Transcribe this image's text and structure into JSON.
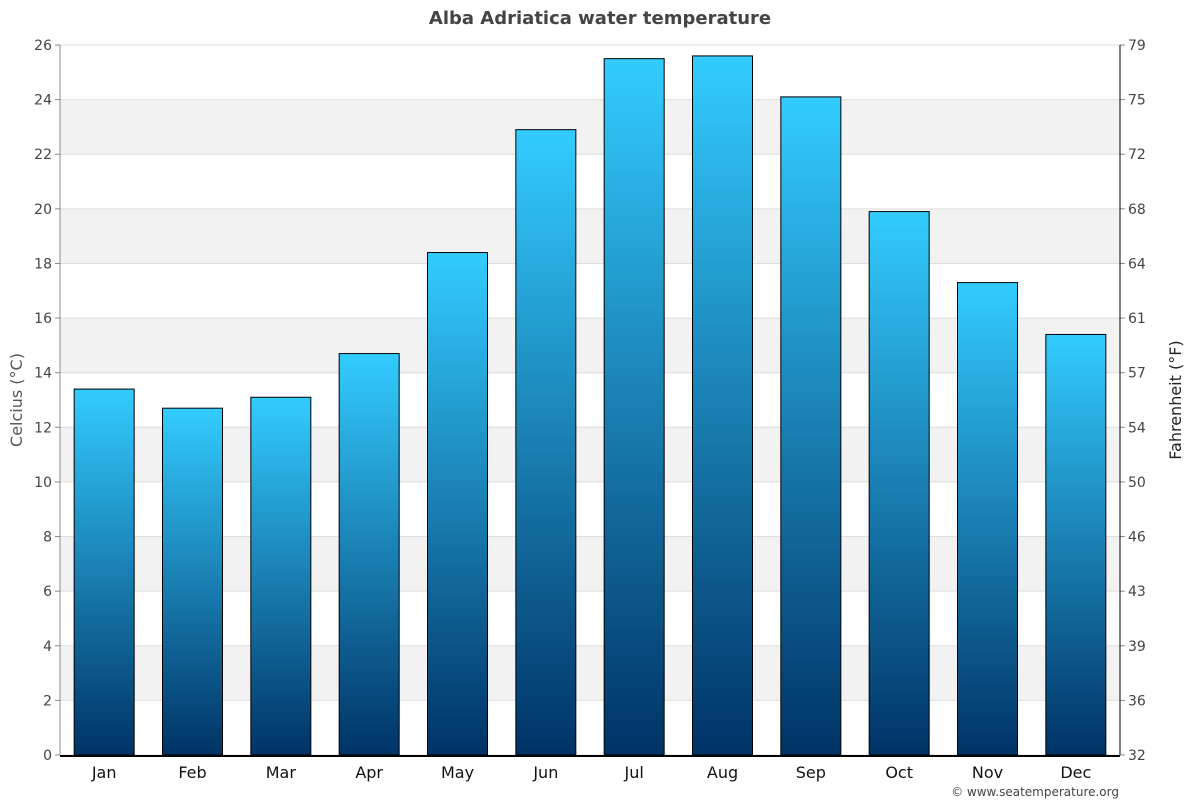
{
  "chart_data": {
    "type": "bar",
    "title": "Alba Adriatica water temperature",
    "ylabel": "Celcius (°C)",
    "ylabel_right": "Fahrenheit (°F)",
    "xlabel": "",
    "categories": [
      "Jan",
      "Feb",
      "Mar",
      "Apr",
      "May",
      "Jun",
      "Jul",
      "Aug",
      "Sep",
      "Oct",
      "Nov",
      "Dec"
    ],
    "values": [
      13.4,
      12.7,
      13.1,
      14.7,
      18.4,
      22.9,
      25.5,
      25.6,
      24.1,
      19.9,
      17.3,
      15.4
    ],
    "ylim": [
      0,
      26
    ],
    "yticks": [
      "0",
      "2",
      "4",
      "6",
      "8",
      "10",
      "12",
      "14",
      "16",
      "18",
      "20",
      "22",
      "24",
      "26"
    ],
    "yticks_right": [
      "32",
      "36",
      "39",
      "43",
      "46",
      "50",
      "54",
      "57",
      "61",
      "64",
      "68",
      "72",
      "75",
      "79"
    ],
    "grid": true,
    "colors": {
      "bar_top": "#33ccff",
      "bar_bottom": "#003366",
      "band": "#f2f2f2",
      "grid": "#dddddd",
      "text": "#444444"
    }
  },
  "credit": "© www.seatemperature.org"
}
